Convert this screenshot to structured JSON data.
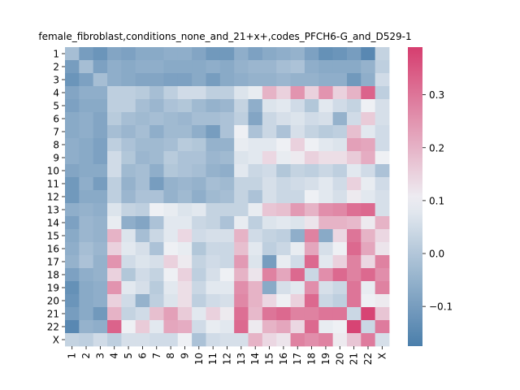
{
  "chart_data": {
    "type": "heatmap",
    "title": "female_fibroblast,conditions_none_and_21+x+,codes_PFCH6-G_and_D529-1",
    "xlabel": "",
    "ylabel": "",
    "rows": [
      "1",
      "2",
      "3",
      "4",
      "5",
      "6",
      "7",
      "8",
      "9",
      "10",
      "11",
      "12",
      "13",
      "14",
      "15",
      "16",
      "17",
      "18",
      "19",
      "20",
      "21",
      "22",
      "X"
    ],
    "cols": [
      "1",
      "2",
      "3",
      "4",
      "5",
      "6",
      "7",
      "8",
      "9",
      "10",
      "11",
      "12",
      "13",
      "14",
      "15",
      "16",
      "17",
      "18",
      "19",
      "20",
      "21",
      "22",
      "X"
    ],
    "values": [
      [
        -0.02,
        -0.1,
        -0.12,
        -0.08,
        -0.09,
        -0.07,
        -0.07,
        -0.06,
        -0.06,
        -0.08,
        -0.11,
        -0.11,
        -0.06,
        -0.09,
        -0.07,
        -0.06,
        -0.05,
        -0.09,
        -0.13,
        -0.12,
        -0.1,
        -0.15,
        0.03
      ],
      [
        -0.1,
        -0.02,
        -0.09,
        -0.06,
        -0.07,
        -0.06,
        -0.06,
        -0.07,
        -0.07,
        -0.07,
        -0.06,
        -0.07,
        -0.05,
        -0.04,
        -0.04,
        -0.02,
        -0.01,
        -0.06,
        -0.07,
        -0.07,
        -0.07,
        -0.05,
        0.02
      ],
      [
        -0.12,
        -0.09,
        -0.02,
        -0.06,
        -0.07,
        -0.08,
        -0.08,
        -0.09,
        -0.09,
        -0.07,
        -0.1,
        -0.07,
        -0.06,
        -0.05,
        -0.05,
        -0.04,
        -0.05,
        -0.05,
        -0.06,
        -0.06,
        -0.11,
        -0.06,
        0.05
      ],
      [
        -0.08,
        -0.06,
        -0.06,
        0.02,
        0.02,
        0.01,
        -0.02,
        0.02,
        0.05,
        0.05,
        0.02,
        0.02,
        0.07,
        0.09,
        0.2,
        0.15,
        0.25,
        0.15,
        0.25,
        0.15,
        0.2,
        0.33,
        0.02
      ],
      [
        -0.09,
        -0.07,
        -0.07,
        0.02,
        0.02,
        -0.02,
        -0.04,
        -0.01,
        0.0,
        -0.03,
        -0.05,
        -0.04,
        0.03,
        -0.06,
        0.07,
        0.08,
        0.05,
        0.0,
        0.08,
        0.05,
        0.03,
        0.1,
        0.06
      ],
      [
        -0.07,
        -0.06,
        -0.08,
        0.01,
        -0.02,
        -0.03,
        -0.02,
        -0.03,
        -0.04,
        -0.02,
        -0.02,
        -0.01,
        0.02,
        -0.08,
        0.04,
        0.06,
        0.07,
        0.05,
        0.06,
        -0.05,
        0.05,
        0.16,
        0.06
      ],
      [
        -0.07,
        -0.06,
        -0.08,
        -0.02,
        -0.04,
        -0.02,
        -0.06,
        -0.03,
        -0.03,
        -0.06,
        -0.1,
        -0.01,
        0.1,
        -0.01,
        0.04,
        -0.01,
        0.06,
        0.03,
        0.01,
        0.02,
        0.18,
        0.08,
        0.05
      ],
      [
        -0.06,
        -0.07,
        -0.09,
        0.02,
        -0.01,
        -0.03,
        -0.03,
        -0.02,
        0.01,
        0.0,
        -0.05,
        -0.05,
        0.09,
        0.08,
        0.08,
        0.1,
        0.15,
        0.1,
        0.08,
        0.07,
        0.23,
        0.22,
        0.05
      ],
      [
        -0.06,
        -0.07,
        -0.09,
        0.05,
        0.0,
        -0.04,
        -0.03,
        0.01,
        -0.01,
        -0.01,
        -0.04,
        -0.03,
        0.07,
        0.08,
        0.14,
        0.09,
        0.11,
        0.15,
        0.13,
        0.13,
        0.16,
        0.21,
        0.1
      ],
      [
        -0.08,
        -0.07,
        -0.07,
        0.05,
        -0.03,
        -0.02,
        -0.06,
        0.0,
        -0.01,
        -0.02,
        -0.05,
        -0.06,
        0.08,
        0.04,
        0.05,
        0.0,
        0.03,
        0.02,
        0.04,
        0.02,
        0.08,
        0.05,
        -0.01
      ],
      [
        -0.11,
        -0.06,
        -0.1,
        0.02,
        -0.05,
        -0.02,
        -0.1,
        -0.05,
        -0.04,
        -0.05,
        -0.02,
        -0.03,
        0.03,
        0.03,
        0.06,
        0.04,
        0.05,
        0.06,
        0.08,
        0.05,
        0.15,
        0.09,
        0.05
      ],
      [
        -0.11,
        -0.07,
        -0.07,
        0.02,
        -0.04,
        -0.01,
        -0.01,
        -0.05,
        -0.03,
        -0.06,
        -0.03,
        -0.02,
        0.03,
        -0.01,
        0.06,
        0.04,
        0.04,
        0.1,
        0.08,
        0.06,
        0.11,
        0.08,
        0.06
      ],
      [
        -0.06,
        -0.05,
        -0.06,
        0.07,
        0.03,
        0.02,
        0.1,
        0.09,
        0.07,
        0.08,
        0.03,
        0.03,
        0.03,
        0.09,
        0.17,
        0.18,
        0.24,
        0.2,
        0.26,
        0.27,
        0.31,
        0.32,
        0.06
      ],
      [
        -0.09,
        -0.04,
        -0.05,
        0.09,
        -0.06,
        -0.08,
        -0.01,
        0.08,
        0.08,
        0.04,
        0.03,
        -0.01,
        0.09,
        0.02,
        0.07,
        0.08,
        0.07,
        0.12,
        0.2,
        0.2,
        0.19,
        0.11,
        0.2
      ],
      [
        -0.07,
        -0.04,
        -0.05,
        0.2,
        0.07,
        -0.02,
        0.04,
        0.08,
        0.14,
        0.05,
        0.06,
        0.06,
        0.2,
        0.05,
        0.03,
        0.02,
        -0.06,
        0.28,
        -0.07,
        0.14,
        0.3,
        0.2,
        0.14
      ],
      [
        -0.06,
        -0.02,
        -0.04,
        0.15,
        0.08,
        0.06,
        -0.01,
        0.1,
        0.09,
        0.0,
        0.04,
        0.04,
        0.18,
        0.08,
        0.02,
        0.04,
        0.09,
        0.22,
        0.06,
        0.1,
        0.32,
        0.22,
        0.12
      ],
      [
        -0.05,
        -0.01,
        -0.05,
        0.25,
        0.05,
        0.07,
        0.06,
        0.15,
        0.11,
        0.03,
        0.05,
        0.04,
        0.24,
        0.07,
        -0.1,
        0.09,
        0.05,
        0.32,
        0.08,
        0.15,
        0.28,
        0.14,
        0.28
      ],
      [
        -0.09,
        -0.06,
        -0.05,
        0.15,
        0.0,
        0.05,
        0.03,
        0.1,
        0.15,
        0.02,
        0.06,
        0.1,
        0.2,
        0.12,
        0.28,
        0.22,
        0.32,
        0.04,
        0.26,
        0.32,
        0.28,
        0.32,
        0.26
      ],
      [
        -0.13,
        -0.07,
        -0.06,
        0.25,
        0.08,
        0.06,
        0.01,
        0.08,
        0.13,
        0.04,
        0.08,
        0.08,
        0.26,
        0.2,
        -0.07,
        0.06,
        0.08,
        0.26,
        0.06,
        0.04,
        0.3,
        0.09,
        0.28
      ],
      [
        -0.12,
        -0.07,
        -0.06,
        0.15,
        0.05,
        -0.05,
        0.02,
        0.07,
        0.13,
        0.02,
        0.05,
        0.06,
        0.27,
        0.2,
        0.14,
        0.1,
        0.15,
        0.32,
        0.04,
        0.02,
        0.3,
        0.1,
        0.11
      ],
      [
        -0.1,
        -0.07,
        -0.11,
        0.2,
        0.03,
        0.05,
        0.18,
        0.23,
        0.16,
        0.08,
        0.15,
        0.11,
        0.31,
        0.19,
        0.3,
        0.32,
        0.28,
        0.28,
        0.3,
        0.3,
        0.04,
        0.38,
        0.17
      ],
      [
        -0.15,
        -0.05,
        -0.06,
        0.33,
        0.1,
        0.16,
        0.08,
        0.22,
        0.21,
        0.05,
        0.09,
        0.08,
        0.32,
        0.11,
        0.2,
        0.22,
        0.14,
        0.32,
        0.09,
        0.1,
        0.38,
        0.04,
        0.29
      ],
      [
        0.03,
        0.02,
        0.05,
        0.02,
        0.06,
        0.06,
        0.05,
        0.05,
        0.1,
        -0.01,
        0.05,
        0.06,
        0.06,
        0.2,
        0.14,
        0.12,
        0.28,
        0.26,
        0.28,
        0.11,
        0.17,
        0.29,
        0.06
      ]
    ],
    "vmin": -0.175,
    "vmax": 0.39,
    "colorbar_ticks": [
      -0.1,
      0.0,
      0.1,
      0.2,
      0.3
    ],
    "colormap": {
      "low": "#4a7eab",
      "mid": "#eef0f4",
      "high": "#d63e6f"
    },
    "grid": false
  }
}
